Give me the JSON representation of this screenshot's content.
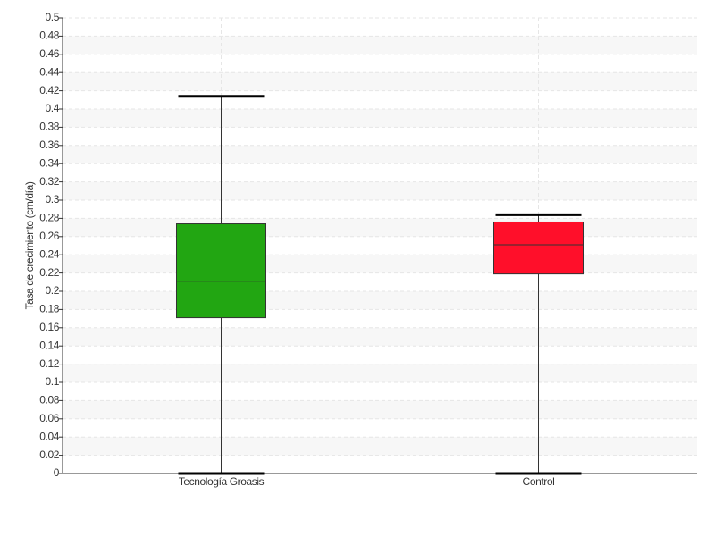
{
  "chart_data": {
    "type": "box",
    "y_label": "Tasa de crecimiento (cm/día)",
    "categories": [
      "Tecnología Groasis",
      "Control"
    ],
    "boxes": [
      {
        "min": 0,
        "q1": 0.171,
        "median": 0.211,
        "q3": 0.274,
        "max": 0.414,
        "color": "#22a612"
      },
      {
        "min": 0,
        "q1": 0.219,
        "median": 0.251,
        "q3": 0.276,
        "max": 0.284,
        "color": "#ff0f2a"
      }
    ],
    "ylim": [
      0,
      0.5
    ],
    "yticks": [
      0,
      0.02,
      0.04,
      0.06,
      0.08,
      0.1,
      0.12,
      0.14,
      0.16,
      0.18,
      0.2,
      0.22,
      0.24,
      0.26,
      0.28,
      0.3,
      0.32,
      0.34,
      0.36,
      0.38,
      0.4,
      0.42,
      0.44,
      0.46,
      0.48,
      0.5
    ],
    "grid": true
  }
}
